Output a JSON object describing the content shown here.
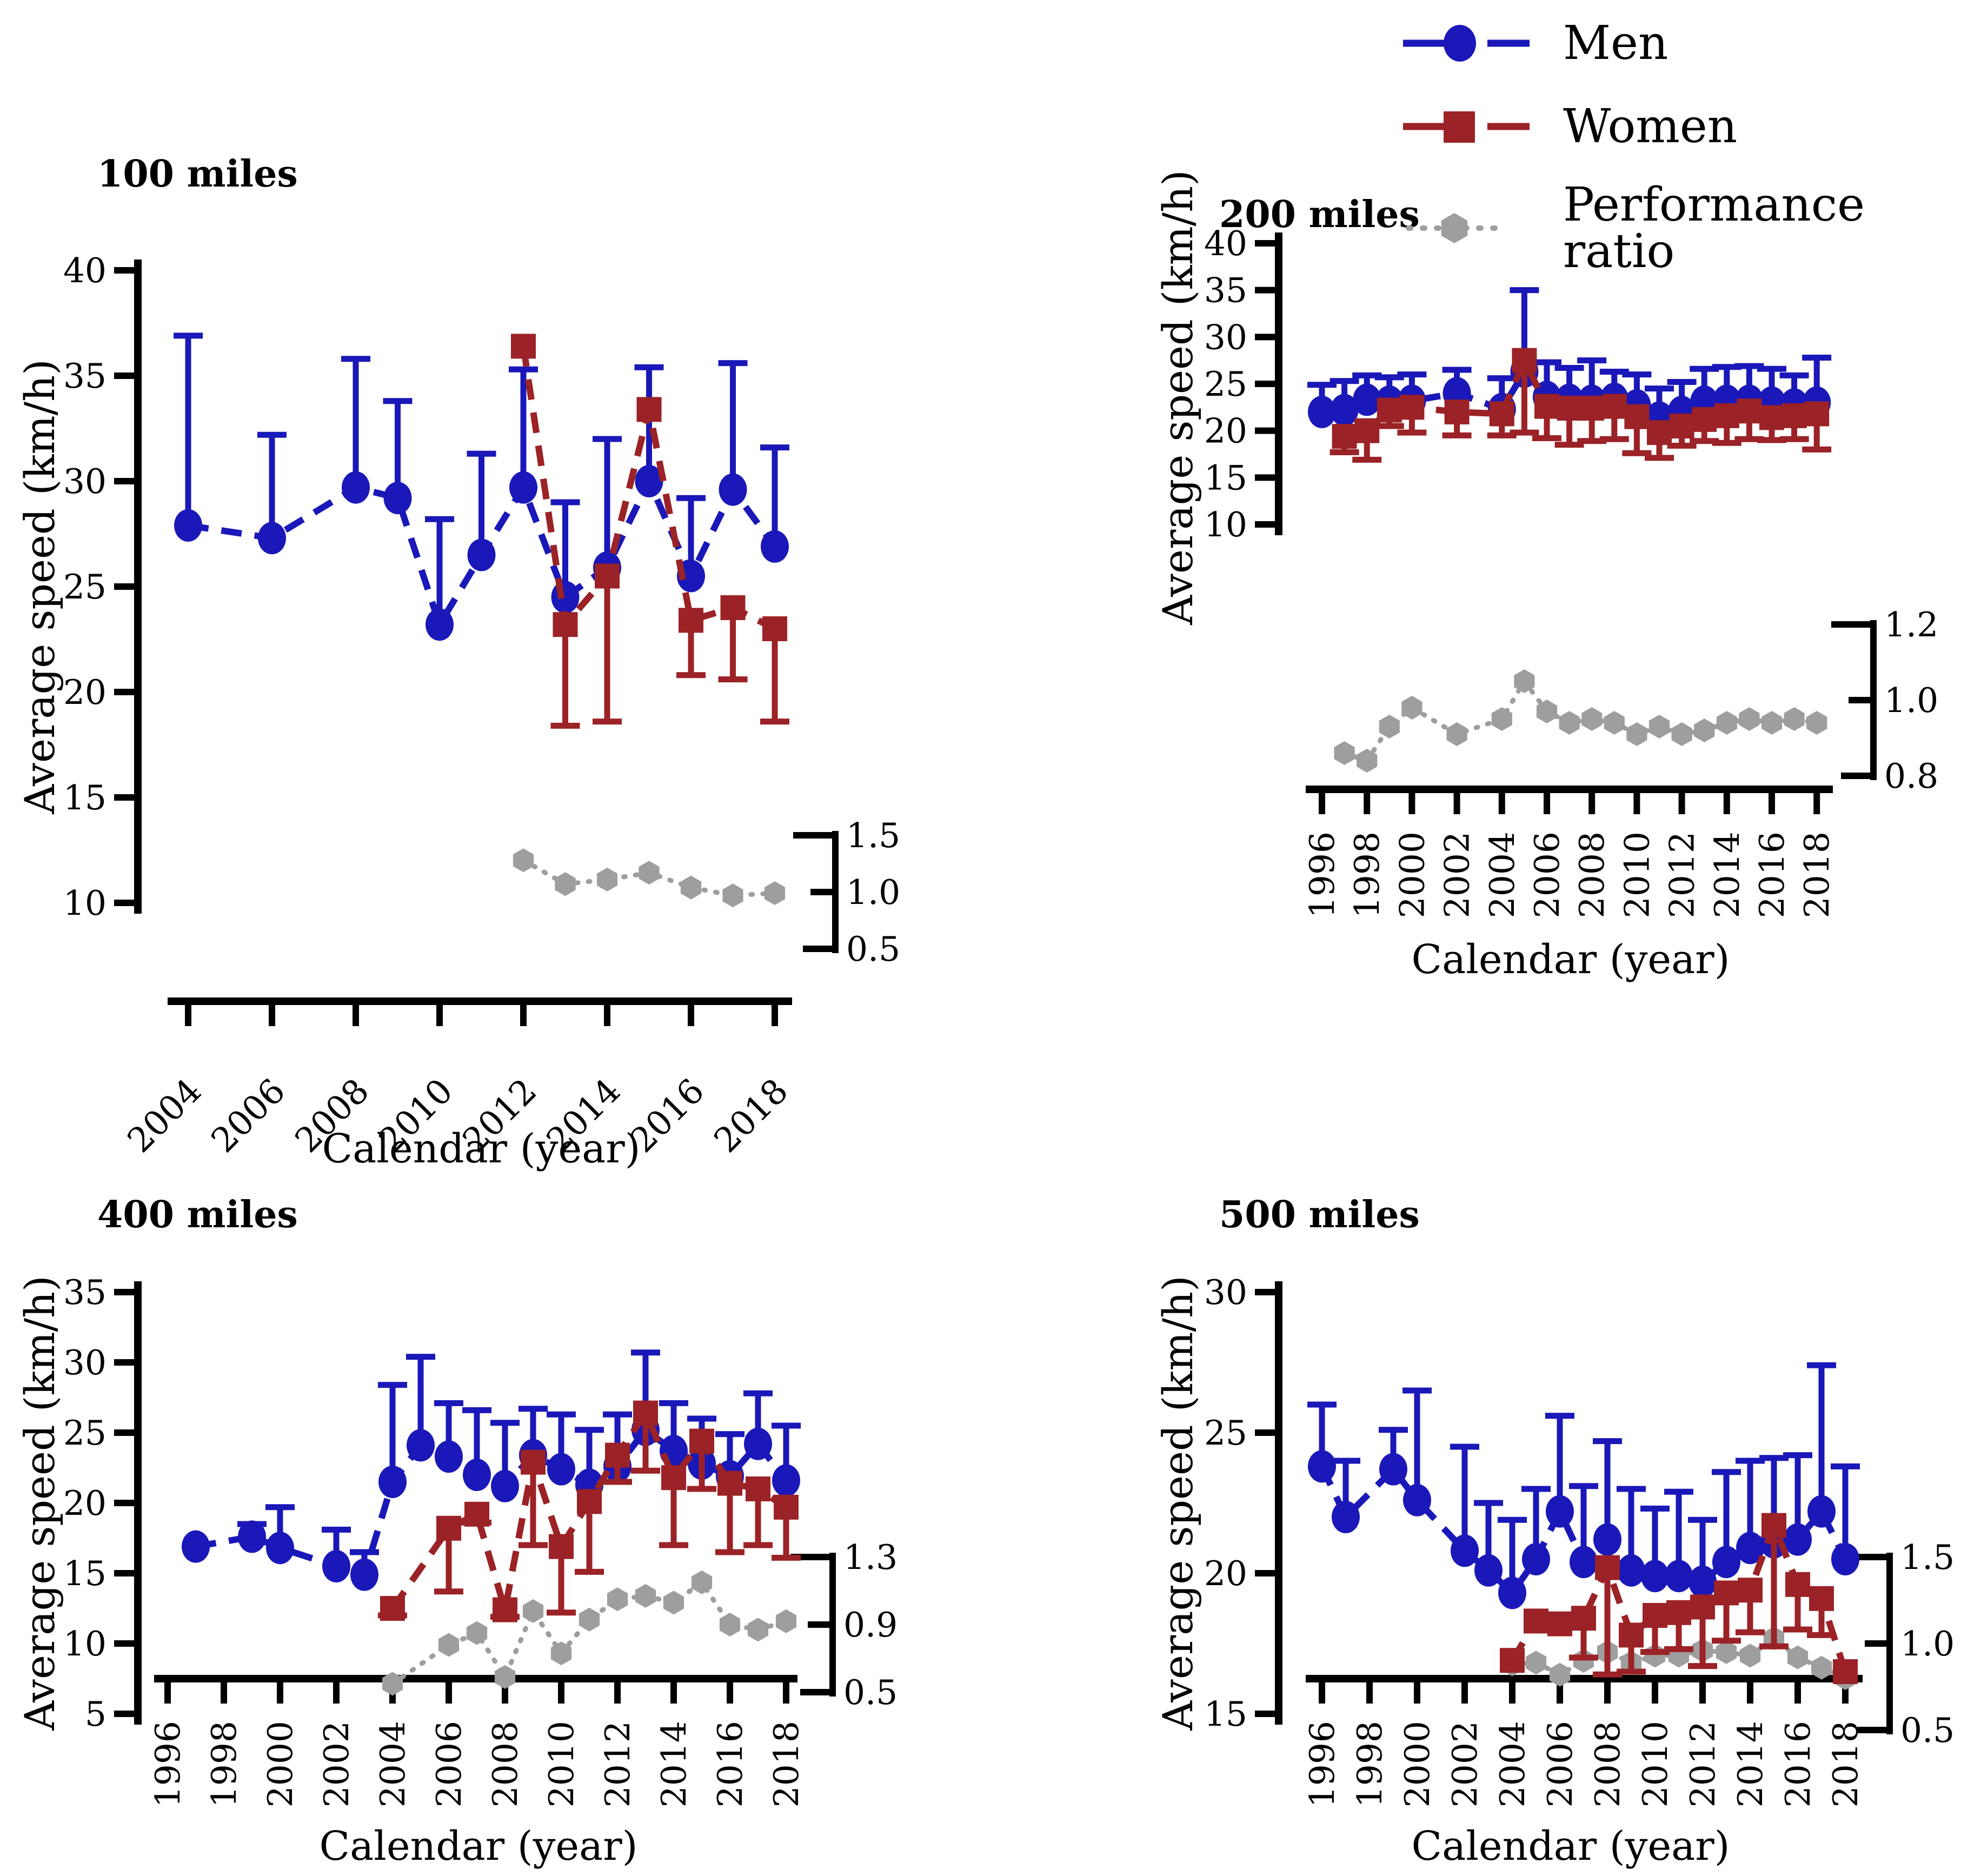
{
  "figure": {
    "background": "#ffffff"
  },
  "colors": {
    "men": "#1a18b8",
    "women": "#9b2226",
    "ratio": "#9e9e9e",
    "axis": "#000000"
  },
  "legend": {
    "items": [
      {
        "label": "Men",
        "series": "men",
        "marker": "circle-icon"
      },
      {
        "label": "Women",
        "series": "women",
        "marker": "square-icon"
      },
      {
        "label": "Performance ratio",
        "series": "ratio",
        "marker": "hexagon-icon"
      }
    ]
  },
  "chart_data": [
    {
      "type": "line",
      "title": "100 miles",
      "xlabel": "Calendar (year)",
      "ylabel": "Average speed (km/h)",
      "ylim": [
        10,
        40
      ],
      "yticks": [
        40,
        35,
        30,
        25,
        20,
        15,
        10
      ],
      "xlim": [
        2004,
        2018
      ],
      "xticks": [
        2004,
        2006,
        2008,
        2010,
        2012,
        2014,
        2016,
        2018
      ],
      "right_axis": {
        "title": "Performance ratio",
        "ticks": [
          1.5,
          1.0,
          0.5
        ],
        "labels": [
          "1.5",
          "1.0",
          "0.5"
        ]
      },
      "series": {
        "men": {
          "years": [
            2004,
            2006,
            2008,
            2009,
            2010,
            2011,
            2012,
            2013,
            2014,
            2015,
            2016,
            2017,
            2018
          ],
          "values": [
            27.9,
            27.3,
            29.7,
            29.2,
            23.2,
            26.5,
            29.7,
            24.5,
            25.9,
            30.0,
            25.5,
            29.6,
            26.9
          ],
          "err_high": [
            36.9,
            32.2,
            35.8,
            33.8,
            28.2,
            31.3,
            35.3,
            29.0,
            32.0,
            35.4,
            29.2,
            35.6,
            31.6
          ]
        },
        "women": {
          "years": [
            2012,
            2013,
            2014,
            2015,
            2016,
            2017,
            2018
          ],
          "values": [
            36.4,
            23.2,
            25.5,
            33.4,
            23.4,
            24.0,
            23.0
          ],
          "err_low": [
            36.4,
            18.4,
            18.6,
            33.4,
            20.8,
            20.6,
            18.6
          ]
        },
        "ratio": {
          "years": [
            2012,
            2013,
            2014,
            2015,
            2016,
            2017,
            2018
          ],
          "values": [
            1.28,
            1.07,
            1.11,
            1.17,
            1.04,
            0.97,
            0.99
          ]
        }
      }
    },
    {
      "type": "line",
      "title": "200 miles",
      "xlabel": "Calendar (year)",
      "ylabel": "Average speed (km/h)",
      "ylim": [
        10,
        40
      ],
      "yticks": [
        40,
        35,
        30,
        25,
        20,
        15,
        10
      ],
      "xlim": [
        1996,
        2018
      ],
      "xticks": [
        1996,
        1998,
        2000,
        2002,
        2004,
        2006,
        2008,
        2010,
        2012,
        2014,
        2016,
        2018
      ],
      "right_axis": {
        "title": "Performance ratio",
        "ticks": [
          1.2,
          1.0,
          0.8
        ],
        "labels": [
          "1.2",
          "1.0",
          "0.8"
        ]
      },
      "series": {
        "men": {
          "years": [
            1996,
            1997,
            1998,
            1999,
            2000,
            2002,
            2004,
            2005,
            2006,
            2007,
            2008,
            2009,
            2010,
            2011,
            2012,
            2013,
            2014,
            2015,
            2016,
            2017,
            2018
          ],
          "values": [
            22.0,
            22.2,
            23.3,
            23.1,
            23.2,
            24.0,
            22.3,
            26.3,
            23.6,
            23.3,
            23.2,
            23.4,
            22.7,
            21.4,
            22.0,
            23.1,
            23.2,
            23.2,
            23.0,
            22.8,
            23.0
          ],
          "err_high": [
            24.9,
            25.3,
            25.9,
            25.7,
            26.0,
            26.5,
            25.6,
            35.0,
            27.3,
            26.7,
            27.5,
            26.3,
            26.0,
            24.5,
            25.2,
            26.6,
            26.8,
            26.9,
            26.6,
            25.9,
            27.8
          ]
        },
        "women": {
          "years": [
            1997,
            1998,
            1999,
            2000,
            2002,
            2004,
            2005,
            2006,
            2007,
            2008,
            2009,
            2010,
            2011,
            2012,
            2013,
            2014,
            2015,
            2016,
            2017,
            2018
          ],
          "values": [
            19.4,
            20.0,
            22.2,
            22.5,
            22.0,
            21.8,
            27.5,
            22.6,
            22.4,
            22.4,
            22.6,
            21.5,
            19.8,
            20.5,
            21.2,
            21.6,
            22.1,
            21.4,
            21.6,
            21.8
          ],
          "err_low": [
            17.7,
            16.9,
            20.5,
            19.8,
            19.5,
            19.5,
            19.8,
            19.2,
            18.5,
            18.9,
            19.1,
            17.6,
            17.1,
            18.4,
            18.9,
            18.7,
            19.1,
            19.0,
            19.1,
            18.0
          ]
        },
        "ratio": {
          "years": [
            1997,
            1998,
            1999,
            2000,
            2002,
            2004,
            2005,
            2006,
            2007,
            2008,
            2009,
            2010,
            2011,
            2012,
            2013,
            2014,
            2015,
            2016,
            2017,
            2018
          ],
          "values": [
            0.86,
            0.84,
            0.93,
            0.98,
            0.91,
            0.95,
            1.05,
            0.97,
            0.94,
            0.95,
            0.94,
            0.91,
            0.93,
            0.91,
            0.92,
            0.94,
            0.95,
            0.94,
            0.95,
            0.94
          ]
        }
      }
    },
    {
      "type": "line",
      "title": "400 miles",
      "xlabel": "Calendar (year)",
      "ylabel": "Average speed (km/h)",
      "ylim": [
        5,
        35
      ],
      "yticks": [
        35,
        30,
        25,
        20,
        15,
        10,
        5
      ],
      "xlim": [
        1996,
        2018
      ],
      "xticks": [
        1996,
        1998,
        2000,
        2002,
        2004,
        2006,
        2008,
        2010,
        2012,
        2014,
        2016,
        2018
      ],
      "right_axis": {
        "title": "Performance ratio",
        "ticks": [
          1.3,
          0.9,
          0.5
        ],
        "labels": [
          "1.3",
          "0.9",
          "0.5"
        ]
      },
      "series": {
        "men": {
          "years": [
            1997,
            1999,
            2000,
            2002,
            2003,
            2004,
            2005,
            2006,
            2007,
            2008,
            2009,
            2010,
            2011,
            2012,
            2013,
            2014,
            2015,
            2016,
            2017,
            2018
          ],
          "values": [
            16.9,
            17.6,
            16.8,
            15.5,
            14.9,
            21.5,
            24.1,
            23.3,
            22.0,
            21.2,
            23.4,
            22.4,
            21.3,
            22.6,
            25.2,
            23.7,
            22.8,
            21.9,
            24.2,
            21.6
          ],
          "err_high": [
            16.9,
            18.5,
            19.7,
            18.1,
            16.5,
            28.4,
            30.4,
            27.1,
            26.6,
            25.7,
            26.7,
            26.3,
            25.2,
            26.3,
            30.7,
            27.1,
            26.0,
            24.9,
            27.8,
            25.5
          ]
        },
        "women": {
          "years": [
            2004,
            2006,
            2007,
            2008,
            2009,
            2010,
            2011,
            2012,
            2013,
            2014,
            2015,
            2016,
            2017,
            2018
          ],
          "values": [
            12.5,
            18.2,
            19.2,
            12.4,
            22.9,
            16.9,
            20.1,
            23.4,
            26.4,
            21.8,
            24.4,
            21.4,
            21.0,
            19.7
          ],
          "err_low": [
            12.0,
            13.7,
            18.6,
            11.9,
            17.0,
            12.2,
            15.1,
            21.5,
            22.3,
            17.0,
            21.0,
            16.5,
            17.0,
            16.1
          ]
        },
        "ratio": {
          "years": [
            2004,
            2006,
            2007,
            2008,
            2009,
            2010,
            2011,
            2012,
            2013,
            2014,
            2015,
            2016,
            2017,
            2018
          ],
          "values": [
            0.55,
            0.78,
            0.85,
            0.59,
            0.98,
            0.73,
            0.93,
            1.05,
            1.07,
            1.03,
            1.15,
            0.9,
            0.87,
            0.92
          ]
        }
      }
    },
    {
      "type": "line",
      "title": "500 miles",
      "xlabel": "Calendar (year)",
      "ylabel": "Average speed (km/h)",
      "ylim": [
        15,
        30
      ],
      "yticks": [
        30,
        25,
        20,
        15
      ],
      "xlim": [
        1996,
        2018
      ],
      "xticks": [
        1996,
        1998,
        2000,
        2002,
        2004,
        2006,
        2008,
        2010,
        2012,
        2014,
        2016,
        2018
      ],
      "right_axis": {
        "title": "Performance ratio",
        "ticks": [
          1.5,
          1.0,
          0.5
        ],
        "labels": [
          "1.5",
          "1.0",
          "0.5"
        ]
      },
      "series": {
        "men": {
          "years": [
            1996,
            1997,
            1999,
            2000,
            2002,
            2003,
            2004,
            2005,
            2006,
            2007,
            2008,
            2009,
            2010,
            2011,
            2012,
            2013,
            2014,
            2015,
            2016,
            2017,
            2018
          ],
          "values": [
            23.8,
            22.0,
            23.7,
            22.6,
            20.8,
            20.1,
            19.3,
            20.5,
            22.2,
            20.4,
            21.2,
            20.1,
            19.9,
            19.9,
            19.7,
            20.4,
            20.9,
            21.1,
            21.2,
            22.2,
            20.5
          ],
          "err_high": [
            26.0,
            24.0,
            25.1,
            26.5,
            24.5,
            22.5,
            21.9,
            23.0,
            25.6,
            23.1,
            24.7,
            23.0,
            22.3,
            22.9,
            21.9,
            23.6,
            24.0,
            24.1,
            24.2,
            27.4,
            23.8
          ]
        },
        "women": {
          "years": [
            2004,
            2005,
            2006,
            2007,
            2008,
            2009,
            2010,
            2011,
            2012,
            2013,
            2014,
            2015,
            2016,
            2017,
            2018
          ],
          "values": [
            16.9,
            18.3,
            18.2,
            18.4,
            20.2,
            17.8,
            18.5,
            18.6,
            18.8,
            19.3,
            19.4,
            21.7,
            19.6,
            19.1,
            16.5
          ],
          "err_low": [
            16.9,
            18.3,
            18.2,
            17.0,
            16.4,
            16.5,
            17.2,
            17.3,
            16.7,
            17.6,
            17.9,
            17.4,
            18.0,
            17.8,
            16.5
          ]
        },
        "ratio": {
          "years": [
            2004,
            2005,
            2006,
            2007,
            2008,
            2009,
            2010,
            2011,
            2012,
            2013,
            2014,
            2015,
            2016,
            2017,
            2018
          ],
          "values": [
            0.88,
            0.89,
            0.82,
            0.9,
            0.95,
            0.89,
            0.93,
            0.93,
            0.96,
            0.95,
            0.93,
            1.03,
            0.92,
            0.86,
            0.8
          ]
        }
      }
    }
  ]
}
